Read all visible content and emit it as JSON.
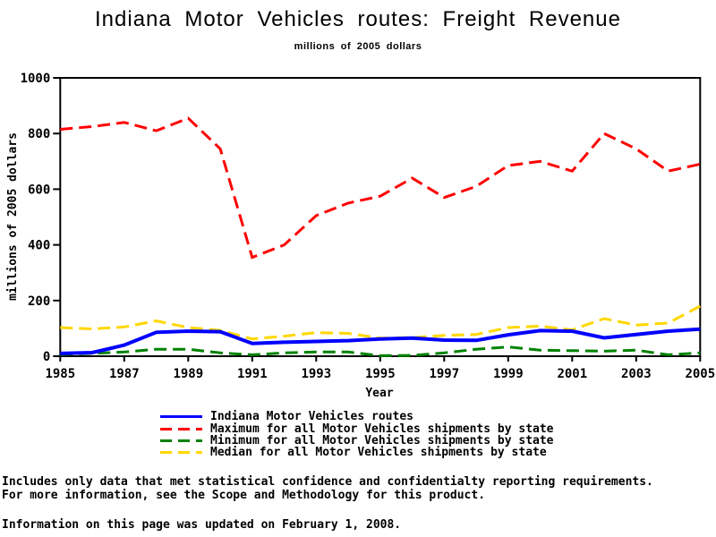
{
  "header": {
    "title": "Indiana Motor Vehicles routes: Freight Revenue",
    "subtitle": "millions of 2005 dollars"
  },
  "chart_data": {
    "type": "line",
    "title": "Indiana Motor Vehicles routes: Freight Revenue",
    "subtitle": "millions of 2005 dollars",
    "xlabel": "Year",
    "ylabel": "millions of 2005 dollars",
    "ylim": [
      0,
      1000
    ],
    "yticks": [
      0,
      200,
      400,
      600,
      800,
      1000
    ],
    "xticks": [
      1985,
      1987,
      1989,
      1991,
      1993,
      1995,
      1997,
      1999,
      2001,
      2003,
      2005
    ],
    "grid": false,
    "legend_position": "bottom",
    "x": [
      1985,
      1986,
      1987,
      1988,
      1989,
      1990,
      1991,
      1992,
      1993,
      1994,
      1995,
      1996,
      1997,
      1998,
      1999,
      2000,
      2001,
      2002,
      2003,
      2004,
      2005
    ],
    "series": [
      {
        "id": "indiana",
        "name": "Indiana Motor Vehicles routes",
        "color": "#0000ff",
        "style": "solid",
        "values": [
          10,
          13,
          40,
          86,
          90,
          88,
          46,
          50,
          53,
          56,
          62,
          65,
          58,
          57,
          77,
          92,
          90,
          66,
          78,
          90,
          97
        ]
      },
      {
        "id": "maximum",
        "name": "Maximum for all Motor Vehicles shipments by state",
        "color": "#ff0000",
        "style": "dashed",
        "values": [
          815,
          825,
          840,
          810,
          855,
          745,
          355,
          400,
          505,
          550,
          575,
          640,
          570,
          610,
          685,
          700,
          665,
          800,
          745,
          665,
          690
        ]
      },
      {
        "id": "minimum",
        "name": "Minimum for all Motor Vehicles shipments by state",
        "color": "#008200",
        "style": "dashed",
        "values": [
          6,
          10,
          15,
          25,
          25,
          12,
          5,
          12,
          15,
          15,
          2,
          3,
          12,
          25,
          33,
          22,
          20,
          18,
          22,
          5,
          12
        ]
      },
      {
        "id": "median",
        "name": "Median for all Motor Vehicles shipments by state",
        "color": "#ffd700",
        "style": "dashed",
        "values": [
          103,
          98,
          105,
          127,
          103,
          93,
          62,
          72,
          85,
          82,
          65,
          67,
          75,
          78,
          103,
          108,
          95,
          135,
          112,
          119,
          180
        ]
      }
    ]
  },
  "footnotes": {
    "line1": "Includes only data that met statistical confidence and confidentialty reporting requirements.",
    "line2": "For more information, see the Scope and Methodology for this product.",
    "updated": "Information on this page was updated on February 1, 2008."
  }
}
